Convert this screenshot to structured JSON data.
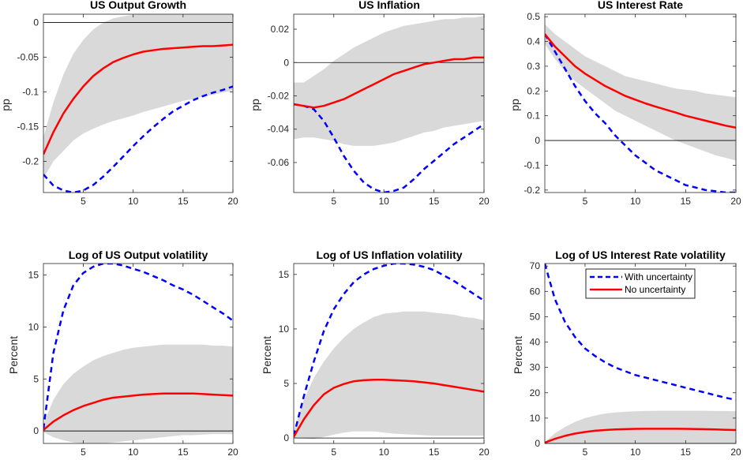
{
  "colors": {
    "with_uncertainty": "#0000ff",
    "no_uncertainty": "#ff0000",
    "band": "#d9d9d9",
    "zero_line": "#000000"
  },
  "legend": {
    "items": [
      {
        "label": "With uncertainty",
        "style": "dashed",
        "color": "#0000ff"
      },
      {
        "label": "No uncertainty",
        "style": "solid",
        "color": "#ff0000"
      }
    ],
    "placement": "top-center of bottom-right panel"
  },
  "chart_data": [
    {
      "type": "line",
      "title": "US Output Growth",
      "xlabel": "",
      "ylabel": "pp",
      "xlim": [
        1,
        20
      ],
      "ylim": [
        -0.245,
        0.012
      ],
      "xticks": [
        5,
        10,
        15,
        20
      ],
      "yticks": [
        0,
        -0.05,
        -0.1,
        -0.15,
        -0.2
      ],
      "ytick_labels": [
        "0",
        "-0.05",
        "-0.1",
        "-0.15",
        "-0.2"
      ],
      "zero_line": true,
      "x": [
        1,
        2,
        3,
        4,
        5,
        6,
        7,
        8,
        9,
        10,
        11,
        12,
        13,
        14,
        15,
        16,
        17,
        18,
        19,
        20
      ],
      "series": [
        {
          "name": "With uncertainty",
          "style": "dashed",
          "values": [
            -0.219,
            -0.235,
            -0.242,
            -0.245,
            -0.242,
            -0.234,
            -0.222,
            -0.208,
            -0.193,
            -0.178,
            -0.164,
            -0.151,
            -0.139,
            -0.128,
            -0.12,
            -0.112,
            -0.106,
            -0.101,
            -0.097,
            -0.092
          ]
        },
        {
          "name": "No uncertainty",
          "style": "solid",
          "values": [
            -0.19,
            -0.158,
            -0.131,
            -0.11,
            -0.092,
            -0.077,
            -0.066,
            -0.057,
            -0.051,
            -0.046,
            -0.042,
            -0.04,
            -0.038,
            -0.037,
            -0.036,
            -0.035,
            -0.034,
            -0.034,
            -0.033,
            -0.032
          ]
        }
      ],
      "band": {
        "upper": [
          -0.165,
          -0.115,
          -0.075,
          -0.045,
          -0.025,
          -0.01,
          0.0,
          0.006,
          0.009,
          0.011,
          0.012,
          0.012,
          0.012,
          0.012,
          0.012,
          0.012,
          0.012,
          0.012,
          0.012,
          0.012
        ],
        "lower": [
          -0.225,
          -0.2,
          -0.185,
          -0.17,
          -0.16,
          -0.153,
          -0.147,
          -0.142,
          -0.138,
          -0.134,
          -0.129,
          -0.125,
          -0.121,
          -0.117,
          -0.113,
          -0.11,
          -0.107,
          -0.104,
          -0.101,
          -0.098
        ]
      }
    },
    {
      "type": "line",
      "title": "US Inflation",
      "xlabel": "",
      "ylabel": "pp",
      "xlim": [
        1,
        20
      ],
      "ylim": [
        -0.078,
        0.029
      ],
      "xticks": [
        5,
        10,
        15,
        20
      ],
      "yticks": [
        0.02,
        0,
        -0.02,
        -0.04,
        -0.06
      ],
      "ytick_labels": [
        "0.02",
        "0",
        "-0.02",
        "-0.04",
        "-0.06"
      ],
      "zero_line": true,
      "x": [
        1,
        2,
        3,
        4,
        5,
        6,
        7,
        8,
        9,
        10,
        11,
        12,
        13,
        14,
        15,
        16,
        17,
        18,
        19,
        20
      ],
      "series": [
        {
          "name": "With uncertainty",
          "style": "dashed",
          "values": [
            -0.025,
            -0.026,
            -0.028,
            -0.035,
            -0.045,
            -0.056,
            -0.065,
            -0.072,
            -0.076,
            -0.078,
            -0.077,
            -0.075,
            -0.07,
            -0.064,
            -0.059,
            -0.054,
            -0.049,
            -0.045,
            -0.041,
            -0.037
          ]
        },
        {
          "name": "No uncertainty",
          "style": "solid",
          "values": [
            -0.025,
            -0.026,
            -0.027,
            -0.026,
            -0.024,
            -0.022,
            -0.019,
            -0.016,
            -0.013,
            -0.01,
            -0.007,
            -0.005,
            -0.003,
            -0.001,
            0.0,
            0.001,
            0.002,
            0.002,
            0.003,
            0.003
          ]
        }
      ],
      "band": {
        "upper": [
          -0.012,
          -0.012,
          -0.008,
          -0.004,
          0.001,
          0.005,
          0.009,
          0.012,
          0.015,
          0.018,
          0.02,
          0.022,
          0.023,
          0.024,
          0.025,
          0.026,
          0.026,
          0.027,
          0.027,
          0.028
        ],
        "lower": [
          -0.046,
          -0.045,
          -0.045,
          -0.046,
          -0.047,
          -0.049,
          -0.05,
          -0.05,
          -0.05,
          -0.049,
          -0.048,
          -0.046,
          -0.044,
          -0.042,
          -0.041,
          -0.039,
          -0.038,
          -0.037,
          -0.036,
          -0.035
        ]
      }
    },
    {
      "type": "line",
      "title": "US Interest Rate",
      "xlabel": "",
      "ylabel": "pp",
      "xlim": [
        1,
        20
      ],
      "ylim": [
        -0.21,
        0.51
      ],
      "xticks": [
        5,
        10,
        15,
        20
      ],
      "yticks": [
        0.5,
        0.4,
        0.3,
        0.2,
        0.1,
        0,
        -0.1,
        -0.2
      ],
      "ytick_labels": [
        "0.5",
        "0.4",
        "0.3",
        "0.2",
        "0.1",
        "0",
        "-0.1",
        "-0.2"
      ],
      "zero_line": true,
      "x": [
        1,
        2,
        3,
        4,
        5,
        6,
        7,
        8,
        9,
        10,
        11,
        12,
        13,
        14,
        15,
        16,
        17,
        18,
        19,
        20
      ],
      "series": [
        {
          "name": "With uncertainty",
          "style": "dashed",
          "values": [
            0.43,
            0.36,
            0.29,
            0.22,
            0.16,
            0.11,
            0.07,
            0.02,
            -0.02,
            -0.06,
            -0.09,
            -0.12,
            -0.14,
            -0.16,
            -0.18,
            -0.19,
            -0.2,
            -0.205,
            -0.21,
            -0.21
          ]
        },
        {
          "name": "No uncertainty",
          "style": "solid",
          "values": [
            0.43,
            0.38,
            0.34,
            0.3,
            0.27,
            0.245,
            0.22,
            0.2,
            0.18,
            0.165,
            0.15,
            0.137,
            0.125,
            0.113,
            0.1,
            0.09,
            0.08,
            0.07,
            0.06,
            0.052
          ]
        }
      ],
      "band": {
        "upper": [
          0.47,
          0.43,
          0.4,
          0.37,
          0.34,
          0.32,
          0.3,
          0.28,
          0.26,
          0.25,
          0.24,
          0.23,
          0.22,
          0.21,
          0.205,
          0.2,
          0.19,
          0.185,
          0.18,
          0.175
        ],
        "lower": [
          0.39,
          0.33,
          0.28,
          0.24,
          0.21,
          0.18,
          0.15,
          0.12,
          0.1,
          0.08,
          0.06,
          0.04,
          0.02,
          0.0,
          -0.015,
          -0.03,
          -0.045,
          -0.06,
          -0.07,
          -0.08
        ]
      }
    },
    {
      "type": "line",
      "title": "Log of US Output volatility",
      "xlabel": "",
      "ylabel": "Percent",
      "xlim": [
        1,
        20
      ],
      "ylim": [
        -1.2,
        16.1
      ],
      "xticks": [
        5,
        10,
        15,
        20
      ],
      "yticks": [
        15,
        10,
        5,
        0
      ],
      "ytick_labels": [
        "15",
        "10",
        "5",
        "0"
      ],
      "zero_line": true,
      "x": [
        1,
        2,
        3,
        4,
        5,
        6,
        7,
        8,
        9,
        10,
        11,
        12,
        13,
        14,
        15,
        16,
        17,
        18,
        19,
        20
      ],
      "series": [
        {
          "name": "With uncertainty",
          "style": "dashed",
          "values": [
            0.2,
            7.5,
            11.6,
            14.0,
            15.2,
            15.8,
            16.1,
            16.1,
            15.9,
            15.6,
            15.3,
            14.9,
            14.5,
            14.0,
            13.6,
            13.1,
            12.5,
            11.9,
            11.3,
            10.6
          ]
        },
        {
          "name": "No uncertainty",
          "style": "solid",
          "values": [
            0.1,
            0.9,
            1.5,
            2.0,
            2.4,
            2.7,
            3.0,
            3.2,
            3.3,
            3.4,
            3.5,
            3.55,
            3.6,
            3.6,
            3.6,
            3.6,
            3.55,
            3.5,
            3.45,
            3.4
          ]
        }
      ],
      "band": {
        "upper": [
          0.6,
          3.0,
          4.5,
          5.5,
          6.2,
          6.8,
          7.2,
          7.5,
          7.8,
          8.0,
          8.1,
          8.2,
          8.3,
          8.3,
          8.3,
          8.3,
          8.3,
          8.2,
          8.2,
          8.1
        ],
        "lower": [
          -0.1,
          -0.6,
          -0.9,
          -1.1,
          -1.2,
          -1.2,
          -1.2,
          -1.1,
          -1.0,
          -0.9,
          -0.8,
          -0.7,
          -0.6,
          -0.5,
          -0.4,
          -0.4,
          -0.35,
          -0.3,
          -0.3,
          -0.3
        ]
      }
    },
    {
      "type": "line",
      "title": "Log of US Inflation volatility",
      "xlabel": "",
      "ylabel": "Percent",
      "xlim": [
        1,
        20
      ],
      "ylim": [
        -0.5,
        16.0
      ],
      "xticks": [
        5,
        10,
        15,
        20
      ],
      "yticks": [
        15,
        10,
        5,
        0
      ],
      "ytick_labels": [
        "15",
        "10",
        "5",
        "0"
      ],
      "zero_line": true,
      "x": [
        1,
        2,
        3,
        4,
        5,
        6,
        7,
        8,
        9,
        10,
        11,
        12,
        13,
        14,
        15,
        16,
        17,
        18,
        19,
        20
      ],
      "series": [
        {
          "name": "With uncertainty",
          "style": "dashed",
          "values": [
            0.2,
            3.8,
            7.0,
            9.8,
            11.8,
            13.2,
            14.3,
            15.0,
            15.5,
            15.8,
            16.0,
            16.0,
            15.9,
            15.7,
            15.4,
            14.9,
            14.4,
            13.8,
            13.2,
            12.6
          ]
        },
        {
          "name": "No uncertainty",
          "style": "solid",
          "values": [
            0.1,
            1.7,
            3.0,
            4.0,
            4.6,
            4.95,
            5.2,
            5.3,
            5.35,
            5.35,
            5.3,
            5.25,
            5.2,
            5.1,
            5.0,
            4.85,
            4.7,
            4.55,
            4.4,
            4.25
          ]
        }
      ],
      "band": {
        "upper": [
          0.6,
          3.5,
          5.5,
          7.0,
          8.2,
          9.2,
          10.0,
          10.6,
          11.1,
          11.4,
          11.5,
          11.6,
          11.6,
          11.6,
          11.5,
          11.4,
          11.3,
          11.1,
          11.0,
          10.8
        ],
        "lower": [
          0.0,
          -0.05,
          -0.1,
          0.1,
          0.3,
          0.5,
          0.6,
          0.6,
          0.6,
          0.5,
          0.4,
          0.35,
          0.3,
          0.25,
          0.2,
          0.2,
          0.2,
          0.2,
          0.2,
          0.2
        ]
      }
    },
    {
      "type": "line",
      "title": "Log of US Interest Rate volatility",
      "xlabel": "",
      "ylabel": "Percent",
      "xlim": [
        1,
        20
      ],
      "ylim": [
        0,
        71
      ],
      "xticks": [
        5,
        10,
        15,
        20
      ],
      "yticks": [
        70,
        60,
        50,
        40,
        30,
        20,
        10,
        0
      ],
      "ytick_labels": [
        "70",
        "60",
        "50",
        "40",
        "30",
        "20",
        "10",
        "0"
      ],
      "zero_line": true,
      "x": [
        1,
        2,
        3,
        4,
        5,
        6,
        7,
        8,
        9,
        10,
        11,
        12,
        13,
        14,
        15,
        16,
        17,
        18,
        19,
        20
      ],
      "series": [
        {
          "name": "With uncertainty",
          "style": "dashed",
          "values": [
            71,
            57,
            48,
            42,
            37.5,
            34.5,
            32,
            30,
            28.5,
            27,
            26,
            25,
            24,
            23,
            22,
            21,
            20,
            19,
            18,
            17.2
          ]
        },
        {
          "name": "No uncertainty",
          "style": "solid",
          "values": [
            0.3,
            1.8,
            3.0,
            3.9,
            4.5,
            5.0,
            5.3,
            5.5,
            5.65,
            5.75,
            5.8,
            5.8,
            5.8,
            5.8,
            5.75,
            5.7,
            5.6,
            5.5,
            5.4,
            5.3
          ]
        }
      ],
      "band": {
        "upper": [
          0.5,
          4.0,
          6.5,
          8.5,
          10.0,
          11.0,
          11.8,
          12.2,
          12.5,
          12.7,
          12.8,
          12.9,
          12.9,
          12.9,
          12.9,
          12.9,
          12.9,
          12.8,
          12.8,
          12.7
        ],
        "lower": [
          0,
          0,
          0,
          0,
          0,
          0,
          0,
          0,
          0,
          0,
          0,
          0,
          0,
          0,
          0,
          0,
          0,
          0,
          0,
          0
        ]
      }
    }
  ]
}
